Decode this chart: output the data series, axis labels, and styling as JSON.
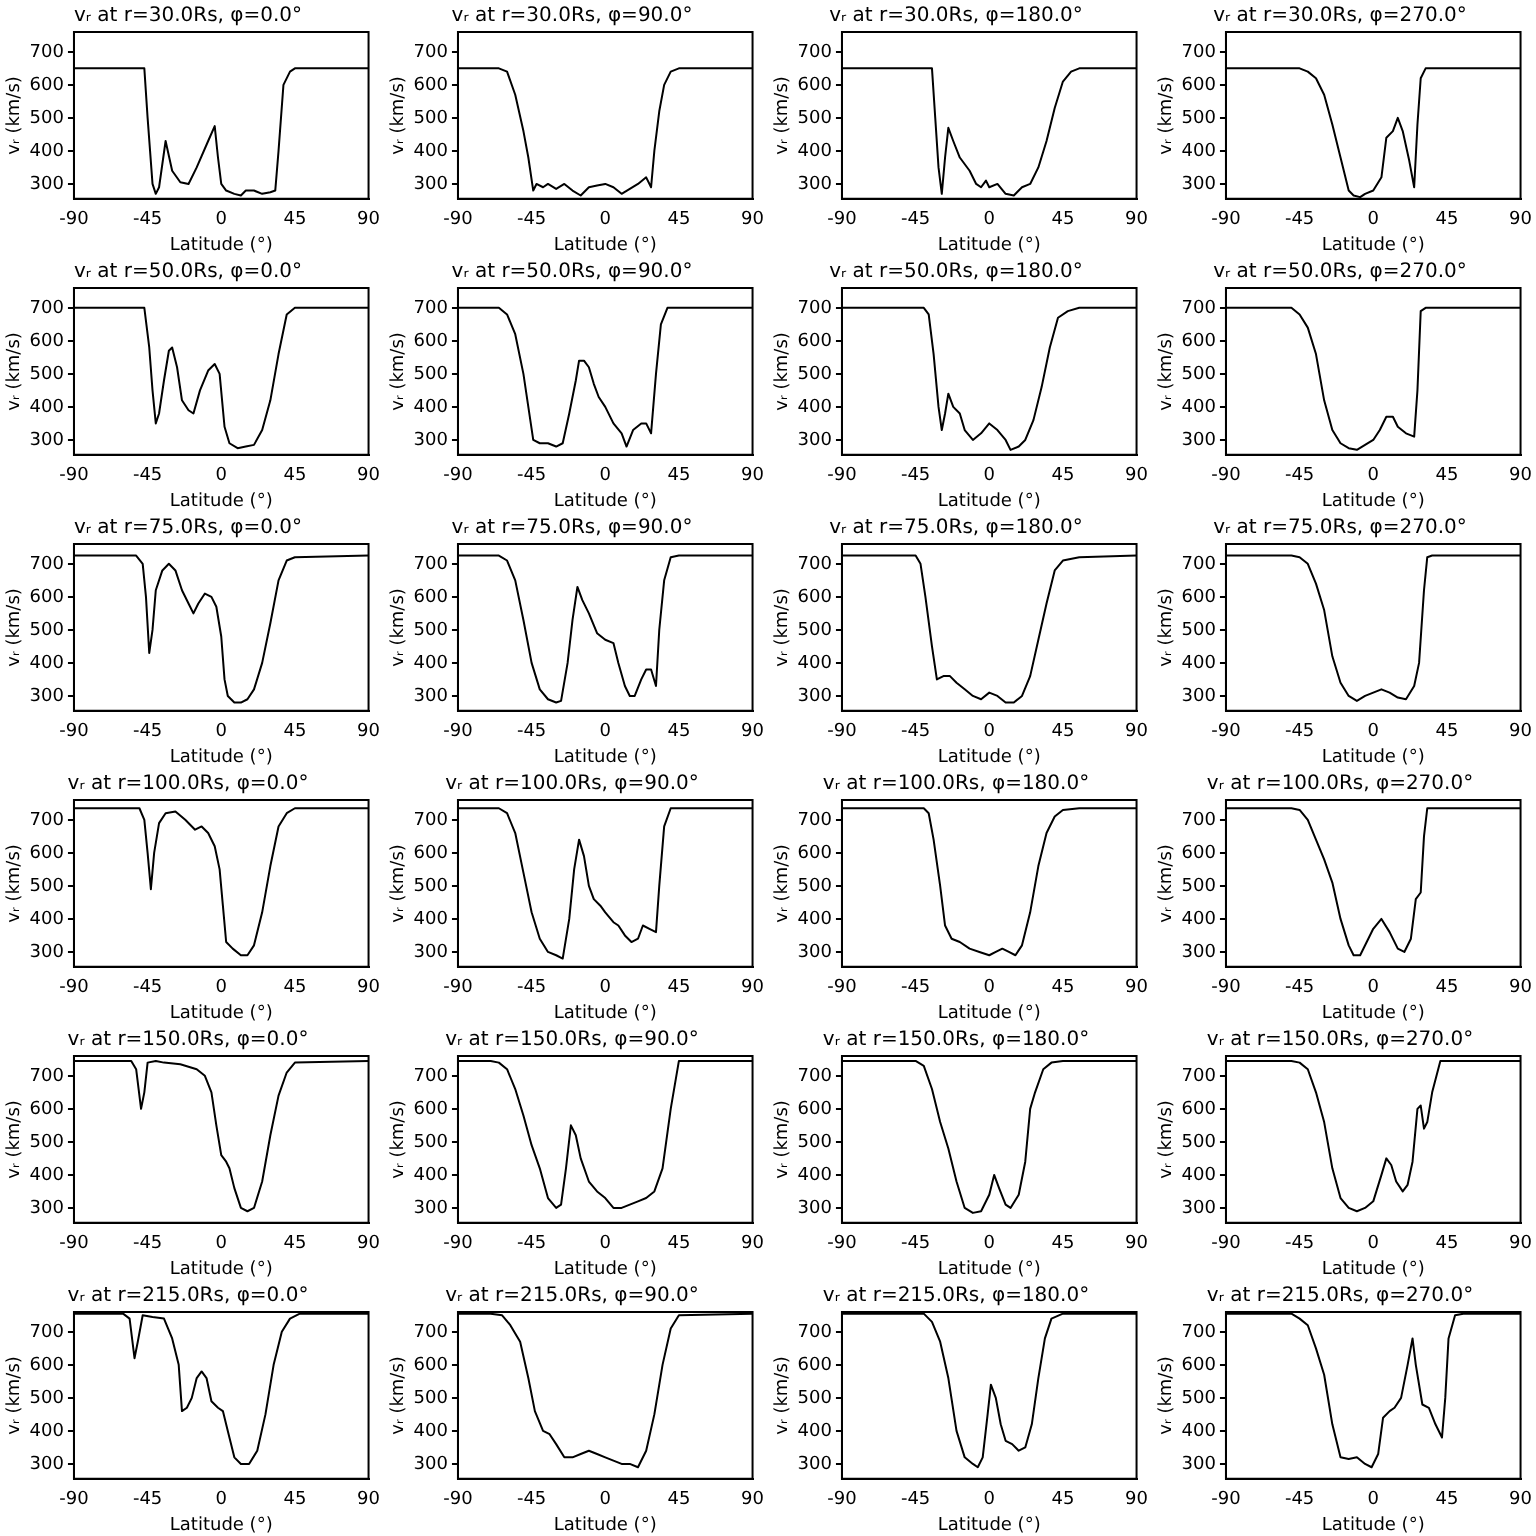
{
  "chart_data": [
    {
      "type": "line",
      "title": "vᵣ at r=30.0Rs, φ=0.0°",
      "xlabel": "Latitude (°)",
      "ylabel": "vᵣ (km/s)",
      "xlim": [
        -90,
        90
      ],
      "xticks": [
        -90,
        -45,
        0,
        45,
        90
      ],
      "ylim": [
        255,
        760
      ],
      "yticks": [
        300,
        400,
        500,
        600,
        700
      ],
      "series": [
        {
          "color": "#000000",
          "x": [
            -90,
            -47,
            -45,
            -42,
            -40,
            -38,
            -34,
            -30,
            -25,
            -20,
            -15,
            -8,
            -4,
            -2,
            0,
            3,
            8,
            12,
            15,
            20,
            25,
            30,
            33,
            35,
            38,
            42,
            45,
            90
          ],
          "values": [
            650,
            650,
            500,
            300,
            270,
            290,
            430,
            340,
            305,
            300,
            350,
            430,
            475,
            380,
            300,
            280,
            270,
            265,
            280,
            280,
            270,
            275,
            280,
            400,
            600,
            640,
            650,
            650
          ]
        }
      ]
    },
    {
      "type": "line",
      "title": "vᵣ at r=30.0Rs, φ=90.0°",
      "xlabel": "Latitude (°)",
      "ylabel": "vᵣ (km/s)",
      "xlim": [
        -90,
        90
      ],
      "xticks": [
        -90,
        -45,
        0,
        45,
        90
      ],
      "ylim": [
        255,
        760
      ],
      "yticks": [
        300,
        400,
        500,
        600,
        700
      ],
      "series": [
        {
          "color": "#000000",
          "x": [
            -90,
            -65,
            -60,
            -55,
            -50,
            -47,
            -44,
            -42,
            -38,
            -35,
            -30,
            -25,
            -20,
            -15,
            -10,
            -5,
            0,
            5,
            10,
            15,
            20,
            25,
            28,
            30,
            33,
            36,
            40,
            45,
            90
          ],
          "values": [
            650,
            650,
            640,
            570,
            460,
            380,
            280,
            300,
            290,
            300,
            285,
            300,
            280,
            265,
            290,
            295,
            300,
            290,
            270,
            285,
            300,
            320,
            290,
            400,
            520,
            600,
            640,
            650,
            650
          ]
        }
      ]
    },
    {
      "type": "line",
      "title": "vᵣ at r=30.0Rs, φ=180.0°",
      "xlabel": "Latitude (°)",
      "ylabel": "vᵣ (km/s)",
      "xlim": [
        -90,
        90
      ],
      "xticks": [
        -90,
        -45,
        0,
        45,
        90
      ],
      "ylim": [
        255,
        760
      ],
      "yticks": [
        300,
        400,
        500,
        600,
        700
      ],
      "series": [
        {
          "color": "#000000",
          "x": [
            -90,
            -35,
            -33,
            -31,
            -29,
            -27,
            -25,
            -22,
            -18,
            -12,
            -8,
            -5,
            -2,
            0,
            5,
            10,
            15,
            20,
            25,
            30,
            35,
            40,
            45,
            50,
            55,
            90
          ],
          "values": [
            650,
            650,
            500,
            350,
            270,
            380,
            470,
            430,
            380,
            340,
            300,
            290,
            310,
            290,
            300,
            270,
            265,
            290,
            300,
            350,
            430,
            530,
            610,
            640,
            650,
            650
          ]
        }
      ]
    },
    {
      "type": "line",
      "title": "vᵣ at r=30.0Rs, φ=270.0°",
      "xlabel": "Latitude (°)",
      "ylabel": "vᵣ (km/s)",
      "xlim": [
        -90,
        90
      ],
      "xticks": [
        -90,
        -45,
        0,
        45,
        90
      ],
      "ylim": [
        255,
        760
      ],
      "yticks": [
        300,
        400,
        500,
        600,
        700
      ],
      "series": [
        {
          "color": "#000000",
          "x": [
            -90,
            -45,
            -40,
            -35,
            -30,
            -25,
            -20,
            -15,
            -12,
            -8,
            -5,
            0,
            5,
            8,
            12,
            15,
            18,
            22,
            25,
            27,
            29,
            32,
            90
          ],
          "values": [
            650,
            650,
            640,
            620,
            570,
            480,
            380,
            280,
            265,
            260,
            270,
            280,
            320,
            440,
            460,
            500,
            460,
            370,
            290,
            480,
            620,
            650,
            650
          ]
        }
      ]
    },
    {
      "type": "line",
      "title": "vᵣ at r=50.0Rs, φ=0.0°",
      "xlabel": "Latitude (°)",
      "ylabel": "vᵣ (km/s)",
      "xlim": [
        -90,
        90
      ],
      "xticks": [
        -90,
        -45,
        0,
        45,
        90
      ],
      "ylim": [
        255,
        760
      ],
      "yticks": [
        300,
        400,
        500,
        600,
        700
      ],
      "series": [
        {
          "color": "#000000",
          "x": [
            -90,
            -47,
            -44,
            -42,
            -40,
            -38,
            -35,
            -32,
            -30,
            -27,
            -24,
            -20,
            -17,
            -13,
            -8,
            -4,
            -1,
            2,
            5,
            10,
            15,
            20,
            25,
            30,
            35,
            40,
            45,
            90
          ],
          "values": [
            700,
            700,
            580,
            450,
            350,
            380,
            480,
            570,
            580,
            520,
            420,
            390,
            380,
            450,
            510,
            530,
            500,
            340,
            290,
            275,
            280,
            285,
            330,
            420,
            560,
            680,
            700,
            700
          ]
        }
      ]
    },
    {
      "type": "line",
      "title": "vᵣ at r=50.0Rs, φ=90.0°",
      "xlabel": "Latitude (°)",
      "ylabel": "vᵣ (km/s)",
      "xlim": [
        -90,
        90
      ],
      "xticks": [
        -90,
        -45,
        0,
        45,
        90
      ],
      "ylim": [
        255,
        760
      ],
      "yticks": [
        300,
        400,
        500,
        600,
        700
      ],
      "series": [
        {
          "color": "#000000",
          "x": [
            -90,
            -65,
            -60,
            -55,
            -50,
            -47,
            -44,
            -40,
            -35,
            -30,
            -26,
            -22,
            -18,
            -16,
            -13,
            -10,
            -7,
            -4,
            0,
            5,
            10,
            13,
            17,
            22,
            25,
            28,
            31,
            34,
            38,
            90
          ],
          "values": [
            700,
            700,
            680,
            620,
            500,
            400,
            300,
            290,
            290,
            280,
            290,
            380,
            480,
            540,
            540,
            520,
            470,
            430,
            400,
            350,
            320,
            280,
            330,
            350,
            350,
            320,
            500,
            650,
            700,
            700
          ]
        }
      ]
    },
    {
      "type": "line",
      "title": "vᵣ at r=50.0Rs, φ=180.0°",
      "xlabel": "Latitude (°)",
      "ylabel": "vᵣ (km/s)",
      "xlim": [
        -90,
        90
      ],
      "xticks": [
        -90,
        -45,
        0,
        45,
        90
      ],
      "ylim": [
        255,
        760
      ],
      "yticks": [
        300,
        400,
        500,
        600,
        700
      ],
      "series": [
        {
          "color": "#000000",
          "x": [
            -90,
            -40,
            -37,
            -34,
            -31,
            -29,
            -27,
            -25,
            -22,
            -18,
            -15,
            -10,
            -5,
            0,
            5,
            10,
            13,
            18,
            22,
            27,
            32,
            37,
            42,
            48,
            55,
            90
          ],
          "values": [
            700,
            700,
            680,
            560,
            400,
            330,
            380,
            440,
            400,
            380,
            330,
            300,
            320,
            350,
            330,
            300,
            270,
            280,
            300,
            360,
            460,
            580,
            670,
            690,
            700,
            700
          ]
        }
      ]
    },
    {
      "type": "line",
      "title": "vᵣ at r=50.0Rs, φ=270.0°",
      "xlabel": "Latitude (°)",
      "ylabel": "vᵣ (km/s)",
      "xlim": [
        -90,
        90
      ],
      "xticks": [
        -90,
        -45,
        0,
        45,
        90
      ],
      "ylim": [
        255,
        760
      ],
      "yticks": [
        300,
        400,
        500,
        600,
        700
      ],
      "series": [
        {
          "color": "#000000",
          "x": [
            -90,
            -50,
            -45,
            -40,
            -35,
            -30,
            -25,
            -20,
            -15,
            -10,
            -5,
            0,
            4,
            8,
            12,
            15,
            20,
            25,
            27,
            29,
            32,
            90
          ],
          "values": [
            700,
            700,
            680,
            640,
            560,
            420,
            330,
            290,
            275,
            270,
            285,
            300,
            330,
            370,
            370,
            340,
            320,
            310,
            450,
            690,
            700,
            700
          ]
        }
      ]
    },
    {
      "type": "line",
      "title": "vᵣ at r=75.0Rs, φ=0.0°",
      "xlabel": "Latitude (°)",
      "ylabel": "vᵣ (km/s)",
      "xlim": [
        -90,
        90
      ],
      "xticks": [
        -90,
        -45,
        0,
        45,
        90
      ],
      "ylim": [
        255,
        760
      ],
      "yticks": [
        300,
        400,
        500,
        600,
        700
      ],
      "series": [
        {
          "color": "#000000",
          "x": [
            -90,
            -52,
            -48,
            -46,
            -44,
            -42,
            -40,
            -36,
            -32,
            -28,
            -24,
            -20,
            -17,
            -14,
            -10,
            -6,
            -3,
            0,
            2,
            4,
            8,
            12,
            16,
            20,
            25,
            30,
            35,
            40,
            45,
            90
          ],
          "values": [
            725,
            725,
            700,
            600,
            430,
            500,
            620,
            680,
            700,
            680,
            620,
            580,
            550,
            580,
            610,
            600,
            570,
            480,
            350,
            300,
            280,
            280,
            290,
            320,
            400,
            520,
            650,
            710,
            720,
            725
          ]
        }
      ]
    },
    {
      "type": "line",
      "title": "vᵣ at r=75.0Rs, φ=90.0°",
      "xlabel": "Latitude (°)",
      "ylabel": "vᵣ (km/s)",
      "xlim": [
        -90,
        90
      ],
      "xticks": [
        -90,
        -45,
        0,
        45,
        90
      ],
      "ylim": [
        255,
        760
      ],
      "yticks": [
        300,
        400,
        500,
        600,
        700
      ],
      "series": [
        {
          "color": "#000000",
          "x": [
            -90,
            -65,
            -60,
            -55,
            -50,
            -45,
            -40,
            -35,
            -30,
            -27,
            -23,
            -20,
            -17,
            -14,
            -10,
            -5,
            0,
            5,
            8,
            12,
            15,
            18,
            22,
            25,
            28,
            31,
            33,
            36,
            40,
            45,
            90
          ],
          "values": [
            725,
            725,
            710,
            650,
            530,
            400,
            320,
            290,
            280,
            285,
            400,
            530,
            630,
            590,
            550,
            490,
            470,
            460,
            400,
            330,
            300,
            300,
            350,
            380,
            380,
            330,
            500,
            650,
            720,
            725,
            725
          ]
        }
      ]
    },
    {
      "type": "line",
      "title": "vᵣ at r=75.0Rs, φ=180.0°",
      "xlabel": "Latitude (°)",
      "ylabel": "vᵣ (km/s)",
      "xlim": [
        -90,
        90
      ],
      "xticks": [
        -90,
        -45,
        0,
        45,
        90
      ],
      "ylim": [
        255,
        760
      ],
      "yticks": [
        300,
        400,
        500,
        600,
        700
      ],
      "series": [
        {
          "color": "#000000",
          "x": [
            -90,
            -45,
            -42,
            -39,
            -35,
            -32,
            -28,
            -24,
            -20,
            -15,
            -10,
            -5,
            0,
            5,
            10,
            15,
            20,
            25,
            30,
            35,
            40,
            45,
            55,
            90
          ],
          "values": [
            725,
            725,
            700,
            600,
            450,
            350,
            360,
            360,
            340,
            320,
            300,
            290,
            310,
            300,
            280,
            280,
            300,
            360,
            470,
            580,
            680,
            710,
            720,
            725
          ]
        }
      ]
    },
    {
      "type": "line",
      "title": "vᵣ at r=75.0Rs, φ=270.0°",
      "xlabel": "Latitude (°)",
      "ylabel": "vᵣ (km/s)",
      "xlim": [
        -90,
        90
      ],
      "xticks": [
        -90,
        -45,
        0,
        45,
        90
      ],
      "ylim": [
        255,
        760
      ],
      "yticks": [
        300,
        400,
        500,
        600,
        700
      ],
      "series": [
        {
          "color": "#000000",
          "x": [
            -90,
            -50,
            -45,
            -40,
            -35,
            -30,
            -25,
            -20,
            -15,
            -10,
            -5,
            0,
            5,
            10,
            15,
            20,
            25,
            28,
            31,
            33,
            36,
            90
          ],
          "values": [
            725,
            725,
            720,
            700,
            640,
            560,
            420,
            340,
            300,
            285,
            300,
            310,
            320,
            310,
            295,
            290,
            330,
            400,
            620,
            720,
            725,
            725
          ]
        }
      ]
    },
    {
      "type": "line",
      "title": "vᵣ at r=100.0Rs, φ=0.0°",
      "xlabel": "Latitude (°)",
      "ylabel": "vᵣ (km/s)",
      "xlim": [
        -90,
        90
      ],
      "xticks": [
        -90,
        -45,
        0,
        45,
        90
      ],
      "ylim": [
        255,
        760
      ],
      "yticks": [
        300,
        400,
        500,
        600,
        700
      ],
      "series": [
        {
          "color": "#000000",
          "x": [
            -90,
            -50,
            -47,
            -45,
            -43,
            -41,
            -38,
            -34,
            -28,
            -22,
            -16,
            -12,
            -8,
            -4,
            -1,
            1,
            3,
            7,
            12,
            16,
            20,
            25,
            30,
            35,
            40,
            45,
            90
          ],
          "values": [
            735,
            735,
            700,
            600,
            490,
            600,
            690,
            720,
            725,
            700,
            670,
            680,
            660,
            620,
            550,
            440,
            330,
            310,
            290,
            290,
            320,
            420,
            560,
            680,
            720,
            735,
            735
          ]
        }
      ]
    },
    {
      "type": "line",
      "title": "vᵣ at r=100.0Rs, φ=90.0°",
      "xlabel": "Latitude (°)",
      "ylabel": "vᵣ (km/s)",
      "xlim": [
        -90,
        90
      ],
      "xticks": [
        -90,
        -45,
        0,
        45,
        90
      ],
      "ylim": [
        255,
        760
      ],
      "yticks": [
        300,
        400,
        500,
        600,
        700
      ],
      "series": [
        {
          "color": "#000000",
          "x": [
            -90,
            -65,
            -60,
            -55,
            -50,
            -45,
            -40,
            -35,
            -30,
            -26,
            -22,
            -19,
            -16,
            -13,
            -10,
            -7,
            -3,
            0,
            5,
            8,
            12,
            16,
            20,
            23,
            27,
            31,
            33,
            36,
            40,
            90
          ],
          "values": [
            735,
            735,
            720,
            660,
            540,
            420,
            340,
            300,
            290,
            280,
            400,
            550,
            640,
            590,
            500,
            460,
            440,
            420,
            390,
            380,
            350,
            330,
            340,
            380,
            370,
            360,
            500,
            680,
            735,
            735
          ]
        }
      ]
    },
    {
      "type": "line",
      "title": "vᵣ at r=100.0Rs, φ=180.0°",
      "xlabel": "Latitude (°)",
      "ylabel": "vᵣ (km/s)",
      "xlim": [
        -90,
        90
      ],
      "xticks": [
        -90,
        -45,
        0,
        45,
        90
      ],
      "ylim": [
        255,
        760
      ],
      "yticks": [
        300,
        400,
        500,
        600,
        700
      ],
      "series": [
        {
          "color": "#000000",
          "x": [
            -90,
            -40,
            -37,
            -34,
            -30,
            -27,
            -23,
            -18,
            -12,
            -6,
            0,
            4,
            8,
            12,
            16,
            20,
            25,
            30,
            35,
            40,
            45,
            55,
            90
          ],
          "values": [
            735,
            735,
            720,
            640,
            500,
            380,
            340,
            330,
            310,
            300,
            290,
            300,
            310,
            300,
            290,
            320,
            420,
            560,
            660,
            710,
            730,
            735,
            735
          ]
        }
      ]
    },
    {
      "type": "line",
      "title": "vᵣ at r=100.0Rs, φ=270.0°",
      "xlabel": "Latitude (°)",
      "ylabel": "vᵣ (km/s)",
      "xlim": [
        -90,
        90
      ],
      "xticks": [
        -90,
        -45,
        0,
        45,
        90
      ],
      "ylim": [
        255,
        760
      ],
      "yticks": [
        300,
        400,
        500,
        600,
        700
      ],
      "series": [
        {
          "color": "#000000",
          "x": [
            -90,
            -50,
            -45,
            -40,
            -35,
            -30,
            -25,
            -20,
            -15,
            -12,
            -8,
            -4,
            0,
            5,
            10,
            15,
            19,
            23,
            26,
            29,
            31,
            33,
            90
          ],
          "values": [
            735,
            735,
            730,
            700,
            640,
            580,
            510,
            400,
            320,
            290,
            290,
            330,
            370,
            400,
            360,
            310,
            300,
            340,
            460,
            480,
            650,
            735,
            735
          ]
        }
      ]
    },
    {
      "type": "line",
      "title": "vᵣ at r=150.0Rs, φ=0.0°",
      "xlabel": "Latitude (°)",
      "ylabel": "vᵣ (km/s)",
      "xlim": [
        -90,
        90
      ],
      "xticks": [
        -90,
        -45,
        0,
        45,
        90
      ],
      "ylim": [
        255,
        760
      ],
      "yticks": [
        300,
        400,
        500,
        600,
        700
      ],
      "series": [
        {
          "color": "#000000",
          "x": [
            -90,
            -55,
            -52,
            -49,
            -47,
            -45,
            -40,
            -35,
            -25,
            -15,
            -10,
            -6,
            -3,
            0,
            3,
            5,
            8,
            12,
            16,
            20,
            25,
            30,
            35,
            40,
            45,
            90
          ],
          "values": [
            745,
            745,
            720,
            600,
            650,
            740,
            745,
            740,
            735,
            720,
            700,
            650,
            550,
            460,
            440,
            420,
            360,
            300,
            290,
            300,
            380,
            520,
            640,
            710,
            740,
            745
          ]
        }
      ]
    },
    {
      "type": "line",
      "title": "vᵣ at r=150.0Rs, φ=90.0°",
      "xlabel": "Latitude (°)",
      "ylabel": "vᵣ (km/s)",
      "xlim": [
        -90,
        90
      ],
      "xticks": [
        -90,
        -45,
        0,
        45,
        90
      ],
      "ylim": [
        255,
        760
      ],
      "yticks": [
        300,
        400,
        500,
        600,
        700
      ],
      "series": [
        {
          "color": "#000000",
          "x": [
            -90,
            -70,
            -65,
            -60,
            -55,
            -50,
            -45,
            -40,
            -35,
            -30,
            -27,
            -24,
            -21,
            -18,
            -15,
            -10,
            -5,
            0,
            5,
            10,
            15,
            20,
            25,
            30,
            35,
            40,
            45,
            90
          ],
          "values": [
            745,
            745,
            740,
            720,
            660,
            580,
            490,
            420,
            330,
            300,
            310,
            420,
            550,
            520,
            450,
            380,
            350,
            330,
            300,
            300,
            310,
            320,
            330,
            350,
            420,
            600,
            745,
            745
          ]
        }
      ]
    },
    {
      "type": "line",
      "title": "vᵣ at r=150.0Rs, φ=180.0°",
      "xlabel": "Latitude (°)",
      "ylabel": "vᵣ (km/s)",
      "xlim": [
        -90,
        90
      ],
      "xticks": [
        -90,
        -45,
        0,
        45,
        90
      ],
      "ylim": [
        255,
        760
      ],
      "yticks": [
        300,
        400,
        500,
        600,
        700
      ],
      "series": [
        {
          "color": "#000000",
          "x": [
            -90,
            -45,
            -40,
            -35,
            -30,
            -25,
            -20,
            -15,
            -10,
            -5,
            0,
            3,
            6,
            10,
            13,
            18,
            22,
            25,
            28,
            33,
            38,
            45,
            90
          ],
          "values": [
            745,
            745,
            730,
            660,
            560,
            480,
            380,
            300,
            285,
            290,
            340,
            400,
            360,
            310,
            300,
            340,
            440,
            600,
            650,
            720,
            740,
            745,
            745
          ]
        }
      ]
    },
    {
      "type": "line",
      "title": "vᵣ at r=150.0Rs, φ=270.0°",
      "xlabel": "Latitude (°)",
      "ylabel": "vᵣ (km/s)",
      "xlim": [
        -90,
        90
      ],
      "xticks": [
        -90,
        -45,
        0,
        45,
        90
      ],
      "ylim": [
        255,
        760
      ],
      "yticks": [
        300,
        400,
        500,
        600,
        700
      ],
      "series": [
        {
          "color": "#000000",
          "x": [
            -90,
            -50,
            -45,
            -40,
            -35,
            -30,
            -25,
            -20,
            -15,
            -10,
            -5,
            0,
            5,
            8,
            11,
            14,
            18,
            21,
            24,
            27,
            29,
            31,
            33,
            36,
            41,
            90
          ],
          "values": [
            745,
            745,
            740,
            720,
            650,
            560,
            420,
            330,
            300,
            290,
            300,
            320,
            400,
            450,
            430,
            380,
            350,
            370,
            440,
            600,
            610,
            540,
            560,
            650,
            745,
            745
          ]
        }
      ]
    },
    {
      "type": "line",
      "title": "vᵣ at r=215.0Rs, φ=0.0°",
      "xlabel": "Latitude (°)",
      "ylabel": "vᵣ (km/s)",
      "xlim": [
        -90,
        90
      ],
      "xticks": [
        -90,
        -45,
        0,
        45,
        90
      ],
      "ylim": [
        255,
        760
      ],
      "yticks": [
        300,
        400,
        500,
        600,
        700
      ],
      "series": [
        {
          "color": "#000000",
          "x": [
            -90,
            -60,
            -56,
            -53,
            -51,
            -48,
            -42,
            -35,
            -30,
            -26,
            -24,
            -21,
            -18,
            -15,
            -12,
            -9,
            -6,
            -2,
            1,
            4,
            8,
            12,
            17,
            22,
            27,
            32,
            37,
            42,
            48,
            90
          ],
          "values": [
            755,
            755,
            740,
            620,
            670,
            750,
            745,
            740,
            680,
            600,
            460,
            470,
            500,
            560,
            580,
            560,
            490,
            470,
            460,
            400,
            320,
            300,
            300,
            340,
            450,
            600,
            700,
            740,
            755,
            755
          ]
        }
      ]
    },
    {
      "type": "line",
      "title": "vᵣ at r=215.0Rs, φ=90.0°",
      "xlabel": "Latitude (°)",
      "ylabel": "vᵣ (km/s)",
      "xlim": [
        -90,
        90
      ],
      "xticks": [
        -90,
        -45,
        0,
        45,
        90
      ],
      "ylim": [
        255,
        760
      ],
      "yticks": [
        300,
        400,
        500,
        600,
        700
      ],
      "series": [
        {
          "color": "#000000",
          "x": [
            -90,
            -70,
            -63,
            -58,
            -52,
            -47,
            -43,
            -38,
            -34,
            -30,
            -25,
            -20,
            -15,
            -10,
            -5,
            0,
            5,
            10,
            15,
            20,
            25,
            30,
            35,
            40,
            45,
            90
          ],
          "values": [
            755,
            755,
            750,
            720,
            670,
            560,
            460,
            400,
            390,
            360,
            320,
            320,
            330,
            340,
            330,
            320,
            310,
            300,
            300,
            290,
            340,
            450,
            600,
            710,
            750,
            755
          ]
        }
      ]
    },
    {
      "type": "line",
      "title": "vᵣ at r=215.0Rs, φ=180.0°",
      "xlabel": "Latitude (°)",
      "ylabel": "vᵣ (km/s)",
      "xlim": [
        -90,
        90
      ],
      "xticks": [
        -90,
        -45,
        0,
        45,
        90
      ],
      "ylim": [
        255,
        760
      ],
      "yticks": [
        300,
        400,
        500,
        600,
        700
      ],
      "series": [
        {
          "color": "#000000",
          "x": [
            -90,
            -40,
            -35,
            -30,
            -25,
            -20,
            -15,
            -10,
            -7,
            -4,
            -1,
            1,
            4,
            7,
            10,
            14,
            18,
            22,
            26,
            30,
            34,
            38,
            45,
            90
          ],
          "values": [
            755,
            755,
            730,
            670,
            560,
            400,
            320,
            300,
            290,
            320,
            450,
            540,
            500,
            420,
            370,
            360,
            340,
            350,
            420,
            560,
            680,
            740,
            755,
            755
          ]
        }
      ]
    },
    {
      "type": "line",
      "title": "vᵣ at r=215.0Rs, φ=270.0°",
      "xlabel": "Latitude (°)",
      "ylabel": "vᵣ (km/s)",
      "xlim": [
        -90,
        90
      ],
      "xticks": [
        -90,
        -45,
        0,
        45,
        90
      ],
      "ylim": [
        255,
        760
      ],
      "yticks": [
        300,
        400,
        500,
        600,
        700
      ],
      "series": [
        {
          "color": "#000000",
          "x": [
            -90,
            -50,
            -45,
            -40,
            -35,
            -30,
            -25,
            -20,
            -15,
            -10,
            -5,
            -1,
            3,
            6,
            10,
            13,
            17,
            21,
            24,
            26,
            30,
            34,
            38,
            42,
            44,
            46,
            50,
            55,
            90
          ],
          "values": [
            755,
            755,
            740,
            720,
            650,
            570,
            420,
            320,
            315,
            320,
            300,
            290,
            330,
            440,
            460,
            470,
            500,
            600,
            680,
            600,
            480,
            470,
            420,
            380,
            500,
            680,
            750,
            755,
            755
          ]
        }
      ]
    }
  ]
}
